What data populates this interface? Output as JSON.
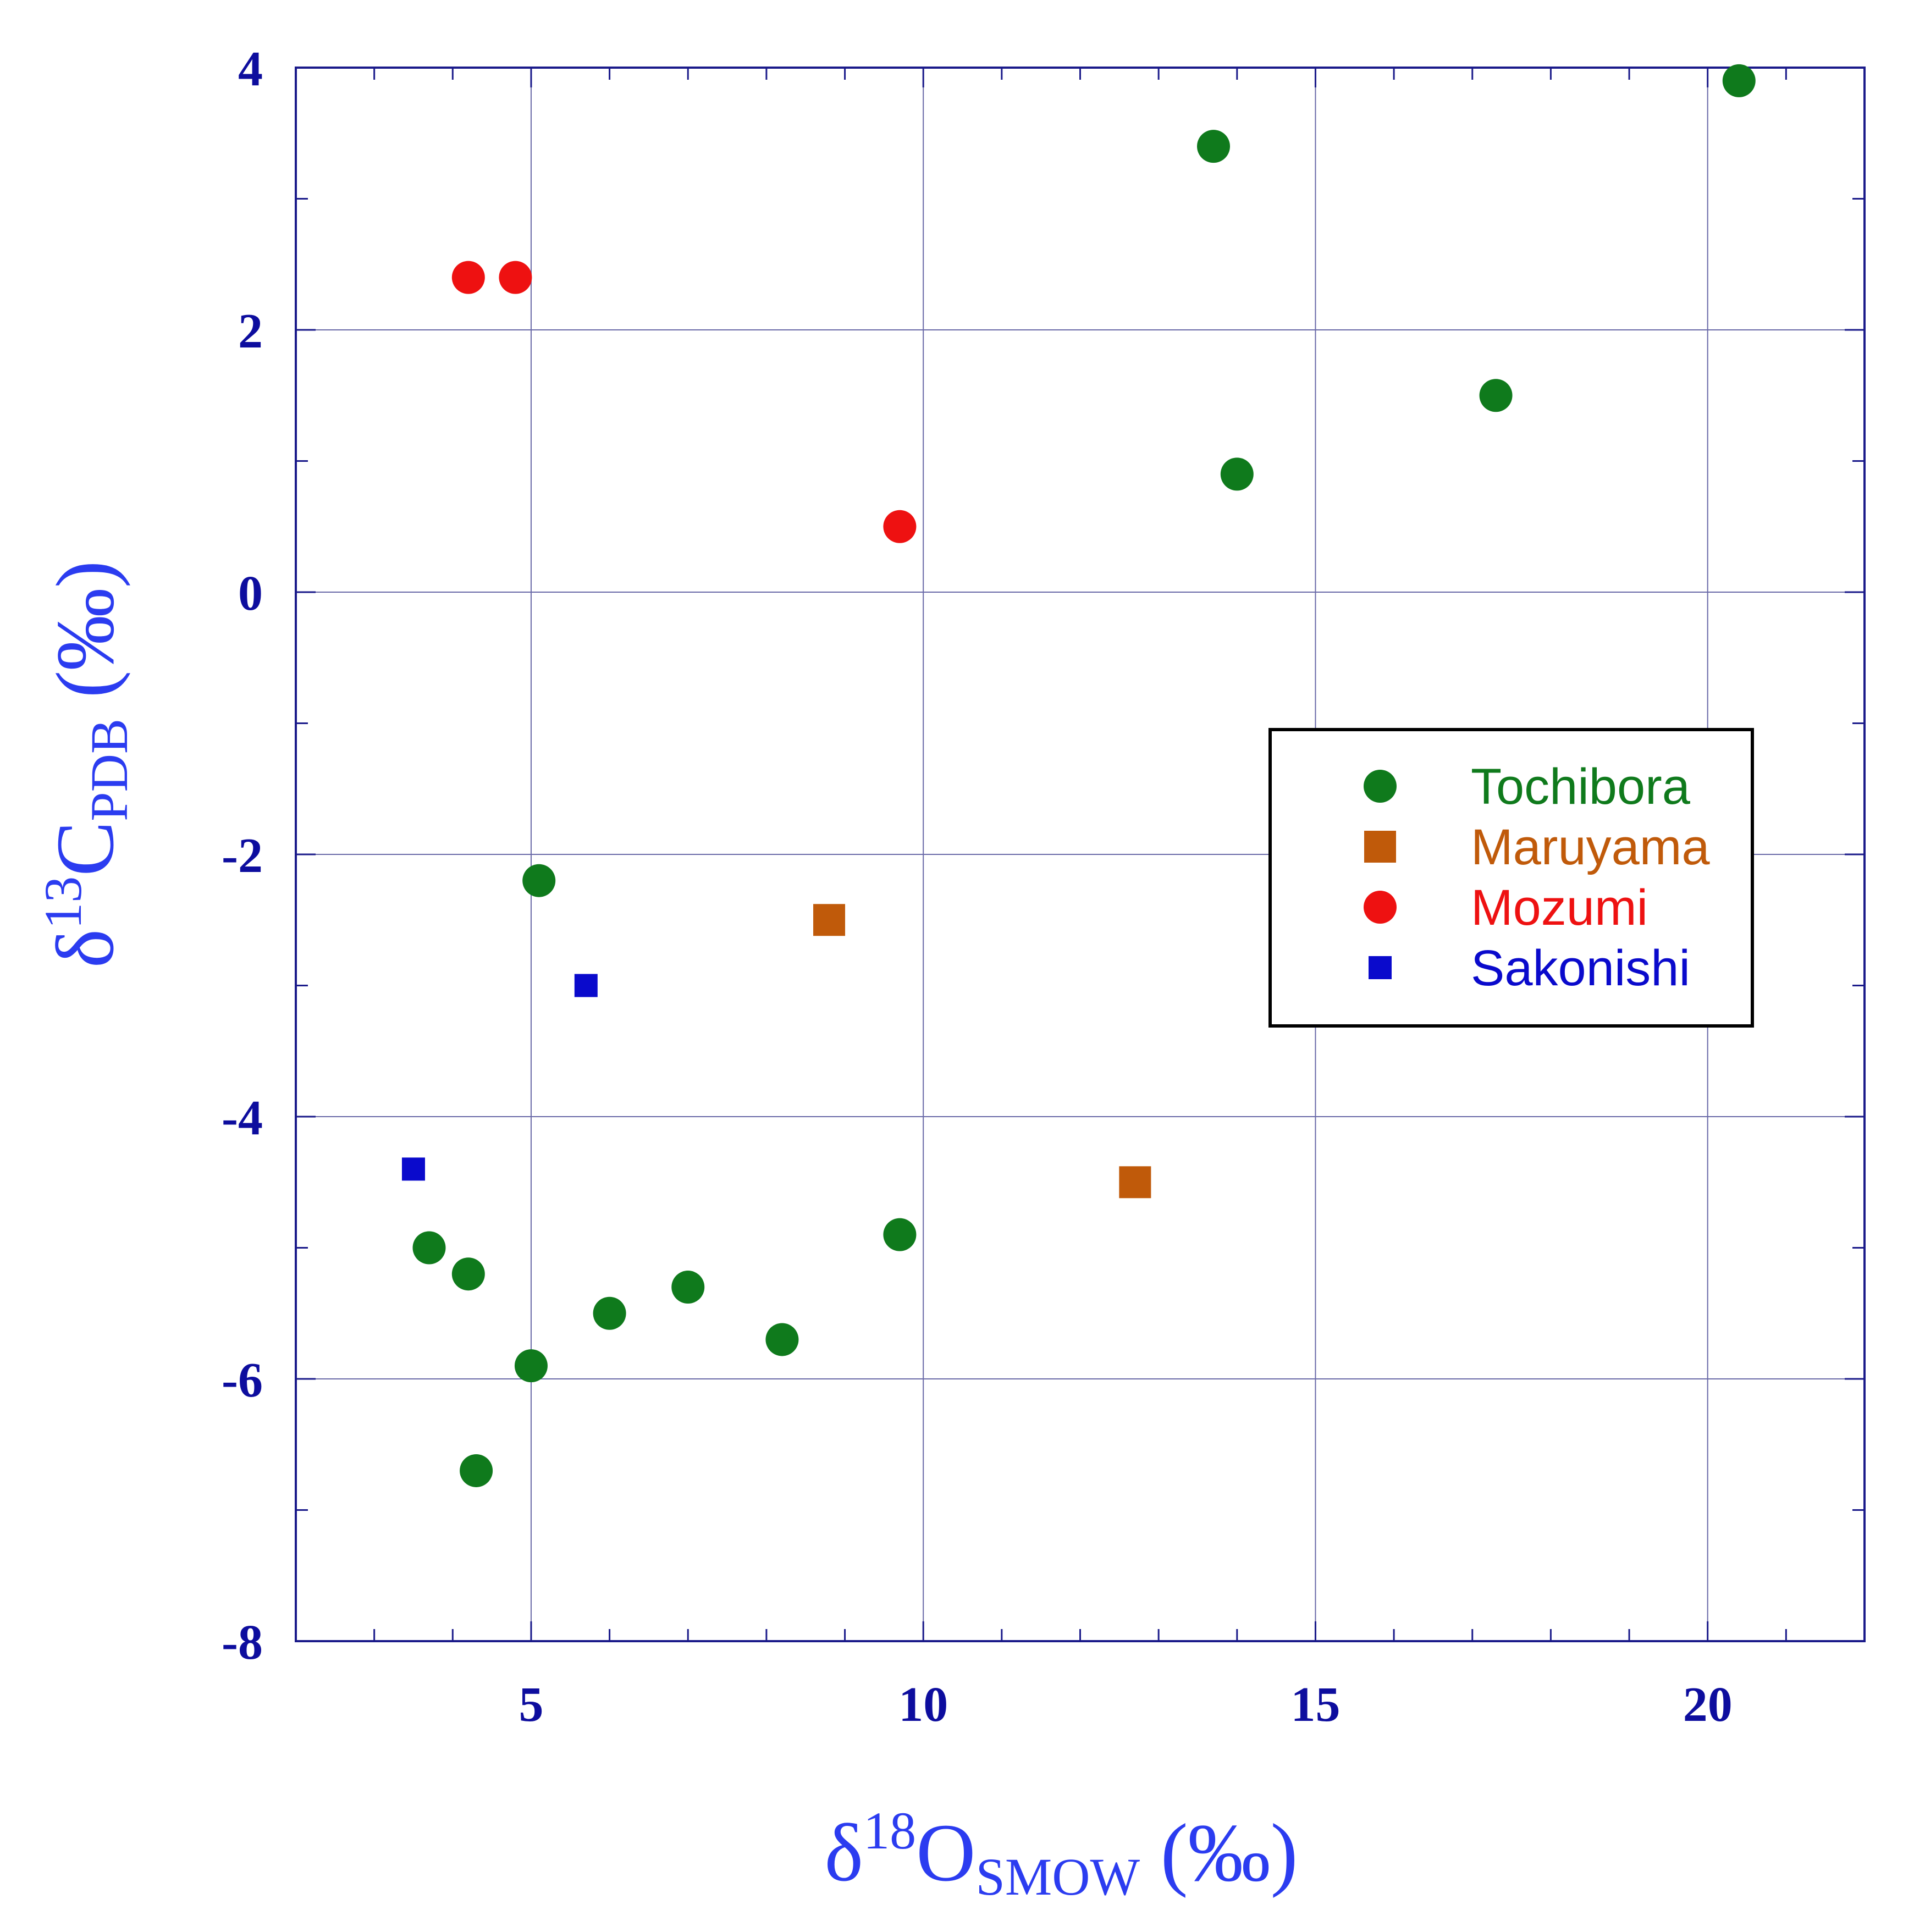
{
  "chart_data": {
    "type": "scatter",
    "title": "",
    "xlabel": {
      "symbol": "δ",
      "superscript": "18",
      "element": "O",
      "subscript": "SMOW",
      "unit": " (‰)"
    },
    "ylabel": {
      "symbol": "δ",
      "superscript": "13",
      "element": "C",
      "subscript": "PDB",
      "unit": " (‰)"
    },
    "xlim": [
      2,
      22
    ],
    "ylim": [
      -8,
      4
    ],
    "x_major_ticks": [
      5,
      10,
      15,
      20
    ],
    "x_minor_ticks": [
      3,
      4,
      5,
      6,
      7,
      8,
      9,
      10,
      11,
      12,
      13,
      14,
      15,
      16,
      17,
      18,
      19,
      20,
      21
    ],
    "y_major_ticks": [
      -8,
      -6,
      -4,
      -2,
      0,
      2,
      4
    ],
    "y_minor_ticks": [
      -7,
      -5,
      -3,
      -1,
      1,
      3
    ],
    "x_tick_labels": [
      "5",
      "10",
      "15",
      "20"
    ],
    "y_tick_labels": [
      "-8",
      "-6",
      "-4",
      "-2",
      "0",
      "2",
      "4"
    ],
    "grid": true,
    "legend_position": "right-middle",
    "colors": {
      "axis": "#1a1a8a",
      "grid": "#6a6aa8",
      "tick_label": "#0d0d9e",
      "axis_title": "#2b3cf0",
      "legend_border": "#000000"
    },
    "series": [
      {
        "name": "Tochibora",
        "marker": "circle",
        "color": "#0f7a1c",
        "points": [
          [
            20.4,
            3.9
          ],
          [
            13.7,
            3.4
          ],
          [
            17.3,
            1.5
          ],
          [
            14.0,
            0.9
          ],
          [
            5.1,
            -2.2
          ],
          [
            9.7,
            -4.9
          ],
          [
            3.7,
            -5.0
          ],
          [
            4.2,
            -5.2
          ],
          [
            7.0,
            -5.3
          ],
          [
            6.0,
            -5.5
          ],
          [
            8.2,
            -5.7
          ],
          [
            5.0,
            -5.9
          ],
          [
            4.3,
            -6.7
          ]
        ]
      },
      {
        "name": "Maruyama",
        "marker": "square",
        "color": "#c05a0a",
        "points": [
          [
            8.8,
            -2.5
          ],
          [
            12.7,
            -4.5
          ]
        ]
      },
      {
        "name": "Mozumi",
        "marker": "circle",
        "color": "#ee1111",
        "points": [
          [
            4.2,
            2.4
          ],
          [
            4.8,
            2.4
          ],
          [
            9.7,
            0.5
          ]
        ]
      },
      {
        "name": "Sakonishi",
        "marker": "square-small",
        "color": "#0a0acc",
        "points": [
          [
            5.7,
            -3.0
          ],
          [
            3.5,
            -4.4
          ]
        ]
      }
    ]
  }
}
